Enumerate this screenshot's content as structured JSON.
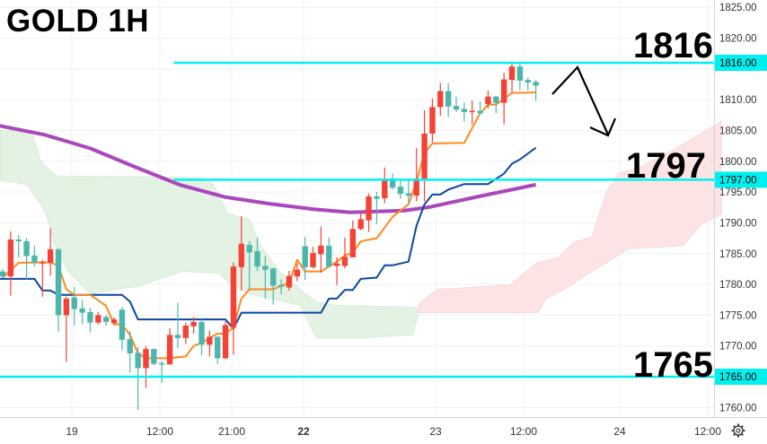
{
  "title": "GOLD 1H",
  "colors": {
    "up": "#f44336",
    "down": "#4db6ac",
    "tenkan": "#ff8a1f",
    "kijun": "#0d47a1",
    "moving_average": "#ab47bc",
    "level_line": "#00f0f0",
    "cloud_bull": "#e3f2e3",
    "cloud_bear": "#fde4e4",
    "annotation": "#000000"
  },
  "chart_data": {
    "type": "candlestick",
    "symbol_label": "GOLD 1H",
    "ylim": [
      1758,
      1826
    ],
    "yticks": [
      1760,
      1765,
      1770,
      1775,
      1780,
      1785,
      1790,
      1795,
      1800,
      1805,
      1810,
      1815,
      1820,
      1825
    ],
    "ytick_labels": [
      "1760.00",
      "1765.00",
      "1770.00",
      "1775.00",
      "1780.00",
      "1785.00",
      "1790.00",
      "1795.00",
      "1800.00",
      "1805.00",
      "1810.00",
      "1815.00",
      "1820.00",
      "1825.00"
    ],
    "xtick_labels": [
      {
        "label": "19",
        "bold": false
      },
      {
        "label": "12:00",
        "bold": false
      },
      {
        "label": "21:00",
        "bold": false
      },
      {
        "label": "22",
        "bold": true
      },
      {
        "label": "23",
        "bold": false
      },
      {
        "label": "12:00",
        "bold": false
      },
      {
        "label": "24",
        "bold": false
      },
      {
        "label": "12:00",
        "bold": false
      }
    ],
    "grid": true,
    "candles_ohlc": [
      [
        1782.1,
        1782.5,
        1781.0,
        1781.3
      ],
      [
        1781.3,
        1788.6,
        1778.2,
        1787.3
      ],
      [
        1787.3,
        1788.0,
        1784.4,
        1787.0
      ],
      [
        1787.0,
        1787.5,
        1780.8,
        1784.6
      ],
      [
        1784.7,
        1786.3,
        1782.9,
        1783.5
      ],
      [
        1783.4,
        1784.0,
        1778.0,
        1783.6
      ],
      [
        1783.5,
        1789.1,
        1781.4,
        1785.7
      ],
      [
        1785.7,
        1785.9,
        1772.3,
        1775.0
      ],
      [
        1775.0,
        1778.0,
        1767.4,
        1777.7
      ],
      [
        1777.9,
        1779.6,
        1773.4,
        1776.0
      ],
      [
        1776.1,
        1777.5,
        1773.5,
        1775.4
      ],
      [
        1775.5,
        1776.2,
        1772.2,
        1773.8
      ],
      [
        1773.8,
        1775.5,
        1773.5,
        1775.0
      ],
      [
        1774.7,
        1775.0,
        1773.3,
        1773.9
      ],
      [
        1773.7,
        1774.7,
        1773.4,
        1774.3
      ],
      [
        1775.9,
        1776.3,
        1769.3,
        1771.0
      ],
      [
        1771.1,
        1772.4,
        1765.7,
        1768.8
      ],
      [
        1768.9,
        1769.8,
        1759.6,
        1766.4
      ],
      [
        1766.4,
        1770.0,
        1763.2,
        1769.5
      ],
      [
        1769.5,
        1769.6,
        1766.9,
        1767.1
      ],
      [
        1767.2,
        1767.6,
        1764.0,
        1767.0
      ],
      [
        1767.0,
        1772.9,
        1767.0,
        1771.8
      ],
      [
        1771.8,
        1777.0,
        1769.6,
        1771.3
      ],
      [
        1771.3,
        1773.8,
        1770.3,
        1773.3
      ],
      [
        1773.2,
        1774.7,
        1772.0,
        1773.9
      ],
      [
        1773.9,
        1774.3,
        1768.5,
        1770.2
      ],
      [
        1770.2,
        1772.5,
        1768.3,
        1771.5
      ],
      [
        1771.5,
        1771.6,
        1767.1,
        1768.0
      ],
      [
        1768.0,
        1774.0,
        1767.9,
        1773.4
      ],
      [
        1773.0,
        1783.6,
        1768.6,
        1782.9
      ],
      [
        1782.8,
        1791.1,
        1779.0,
        1786.6
      ],
      [
        1786.4,
        1787.0,
        1779.0,
        1785.2
      ],
      [
        1785.4,
        1787.6,
        1782.2,
        1782.9
      ],
      [
        1783.0,
        1784.6,
        1777.7,
        1782.4
      ],
      [
        1782.6,
        1782.7,
        1776.7,
        1779.8
      ],
      [
        1779.9,
        1780.8,
        1778.4,
        1779.6
      ],
      [
        1779.5,
        1782.2,
        1779.0,
        1781.4
      ],
      [
        1781.3,
        1783.4,
        1780.5,
        1782.4
      ],
      [
        1786.2,
        1787.7,
        1780.7,
        1782.8
      ],
      [
        1782.8,
        1786.1,
        1782.6,
        1785.1
      ],
      [
        1784.9,
        1789.4,
        1781.9,
        1786.3
      ],
      [
        1786.3,
        1787.6,
        1782.7,
        1782.9
      ],
      [
        1783.0,
        1784.4,
        1779.9,
        1783.4
      ],
      [
        1783.0,
        1787.6,
        1782.6,
        1784.5
      ],
      [
        1784.4,
        1790.4,
        1784.4,
        1789.0
      ],
      [
        1789.0,
        1792.0,
        1788.8,
        1790.6
      ],
      [
        1790.4,
        1794.8,
        1788.5,
        1794.3
      ],
      [
        1794.3,
        1795.0,
        1789.8,
        1793.9
      ],
      [
        1794.0,
        1799.0,
        1793.2,
        1797.2
      ],
      [
        1797.2,
        1798.0,
        1795.4,
        1795.7
      ],
      [
        1795.9,
        1797.2,
        1793.9,
        1794.7
      ],
      [
        1794.8,
        1797.2,
        1793.0,
        1794.4
      ],
      [
        1794.4,
        1802.2,
        1793.5,
        1797.2
      ],
      [
        1797.2,
        1808.3,
        1793.5,
        1804.5
      ],
      [
        1804.5,
        1810.2,
        1803.1,
        1808.8
      ],
      [
        1808.8,
        1812.7,
        1807.4,
        1811.4
      ],
      [
        1811.4,
        1812.7,
        1807.2,
        1808.9
      ],
      [
        1809.0,
        1810.5,
        1808.0,
        1808.4
      ],
      [
        1808.5,
        1809.5,
        1806.4,
        1808.0
      ],
      [
        1808.0,
        1809.9,
        1806.0,
        1808.2
      ],
      [
        1808.2,
        1809.7,
        1807.6,
        1807.8
      ],
      [
        1809.3,
        1811.5,
        1808.6,
        1810.5
      ],
      [
        1810.5,
        1810.6,
        1807.8,
        1809.5
      ],
      [
        1809.5,
        1814.4,
        1806.0,
        1813.3
      ],
      [
        1813.2,
        1815.9,
        1811.2,
        1815.4
      ],
      [
        1815.4,
        1816.0,
        1811.6,
        1813.1
      ],
      [
        1813.2,
        1813.6,
        1811.5,
        1812.8
      ],
      [
        1812.9,
        1813.2,
        1809.8,
        1812.3
      ]
    ],
    "tenkan_line": [
      [
        0,
        1781.1
      ],
      [
        2,
        1783.5
      ],
      [
        6,
        1783.6
      ],
      [
        7,
        1783.0
      ],
      [
        8,
        1779.2
      ],
      [
        9,
        1778.3
      ],
      [
        11,
        1778.3
      ],
      [
        13,
        1776.5
      ],
      [
        14,
        1773.5
      ],
      [
        15,
        1773.5
      ],
      [
        16,
        1771.8
      ],
      [
        17,
        1768.8
      ],
      [
        18,
        1768.0
      ],
      [
        21,
        1768.0
      ],
      [
        23,
        1768.3
      ],
      [
        24,
        1770.0
      ],
      [
        25,
        1770.5
      ],
      [
        26,
        1771.3
      ],
      [
        27,
        1772.0
      ],
      [
        28,
        1772.0
      ],
      [
        29,
        1773.0
      ],
      [
        30,
        1777.7
      ],
      [
        31,
        1779.2
      ],
      [
        34,
        1779.2
      ],
      [
        35,
        1779.8
      ],
      [
        36,
        1780.2
      ],
      [
        37,
        1784.0
      ],
      [
        38,
        1782.1
      ],
      [
        40,
        1782.1
      ],
      [
        41,
        1782.9
      ],
      [
        42,
        1783.7
      ],
      [
        43,
        1784.7
      ],
      [
        44,
        1785.1
      ],
      [
        45,
        1787.0
      ],
      [
        47,
        1787.5
      ],
      [
        49,
        1791.0
      ],
      [
        51,
        1793.0
      ],
      [
        52,
        1796.7
      ],
      [
        53,
        1801.3
      ],
      [
        54,
        1802.9
      ],
      [
        58,
        1803.0
      ],
      [
        60,
        1807.8
      ],
      [
        61,
        1809.2
      ],
      [
        62,
        1809.2
      ],
      [
        64,
        1811.1
      ],
      [
        67,
        1811.2
      ]
    ],
    "kijun_line": [
      [
        -0.5,
        1780.9
      ],
      [
        4,
        1780.9
      ],
      [
        5,
        1779.0
      ],
      [
        6,
        1779.0
      ],
      [
        7,
        1778.3
      ],
      [
        15,
        1778.3
      ],
      [
        16,
        1777.2
      ],
      [
        17,
        1774.3
      ],
      [
        28,
        1774.3
      ],
      [
        29,
        1772.8
      ],
      [
        30,
        1775.4
      ],
      [
        40,
        1775.4
      ],
      [
        41,
        1777.7
      ],
      [
        42,
        1777.7
      ],
      [
        43,
        1779.1
      ],
      [
        44,
        1779.1
      ],
      [
        45,
        1780.9
      ],
      [
        47,
        1781.1
      ],
      [
        48,
        1783.1
      ],
      [
        49,
        1783.1
      ],
      [
        51,
        1783.7
      ],
      [
        52,
        1789.5
      ],
      [
        53,
        1793.0
      ],
      [
        54,
        1794.6
      ],
      [
        55,
        1794.6
      ],
      [
        56,
        1795.4
      ],
      [
        58,
        1796.3
      ],
      [
        61,
        1796.3
      ],
      [
        63,
        1798.0
      ],
      [
        64,
        1799.6
      ],
      [
        65,
        1800.3
      ],
      [
        67,
        1802.2
      ]
    ],
    "moving_average": [
      [
        -0.5,
        1805.8
      ],
      [
        5.3,
        1804.3
      ],
      [
        11,
        1802.1
      ],
      [
        16.6,
        1799.1
      ],
      [
        22.2,
        1796.2
      ],
      [
        27.9,
        1794.2
      ],
      [
        33.5,
        1793.1
      ],
      [
        39.2,
        1792.2
      ],
      [
        43.7,
        1791.7
      ],
      [
        50.5,
        1792.0
      ],
      [
        53.8,
        1792.6
      ],
      [
        59.5,
        1794.2
      ],
      [
        67,
        1796.2
      ]
    ],
    "cloud_bull": {
      "upper": [
        [
          -0.3,
          1805.0
        ],
        [
          3.7,
          1804.7
        ],
        [
          4.8,
          1799.9
        ],
        [
          6.8,
          1797.6
        ],
        [
          8.8,
          1797.6
        ],
        [
          24.8,
          1797.4
        ],
        [
          26.5,
          1796.2
        ],
        [
          28.3,
          1791.5
        ],
        [
          31.1,
          1790.5
        ],
        [
          32.3,
          1786.5
        ],
        [
          34.8,
          1782.1
        ],
        [
          37.8,
          1778.7
        ],
        [
          39.4,
          1777.2
        ],
        [
          41.6,
          1776.6
        ],
        [
          51.5,
          1776.3
        ],
        [
          52.3,
          1776.2
        ]
      ],
      "lower": [
        [
          -0.3,
          1796.9
        ],
        [
          3.1,
          1796.2
        ],
        [
          5.4,
          1791.7
        ],
        [
          6.5,
          1786.5
        ],
        [
          8.2,
          1782.1
        ],
        [
          11.1,
          1778.4
        ],
        [
          14,
          1779.2
        ],
        [
          16.8,
          1779.6
        ],
        [
          22.5,
          1782.1
        ],
        [
          27.1,
          1781.8
        ],
        [
          28.8,
          1779.9
        ],
        [
          31.1,
          1778.4
        ],
        [
          37.4,
          1776.6
        ],
        [
          39.4,
          1771.3
        ],
        [
          45.4,
          1771.3
        ],
        [
          51.5,
          1771.8
        ],
        [
          52.3,
          1775.4
        ]
      ]
    },
    "cloud_bear": {
      "upper": [
        [
          52.3,
          1776.9
        ],
        [
          54.6,
          1779.2
        ],
        [
          63.7,
          1779.9
        ],
        [
          67.2,
          1783.6
        ],
        [
          69.8,
          1784.3
        ],
        [
          71.7,
          1786.8
        ],
        [
          74,
          1787.7
        ],
        [
          76,
          1795.4
        ],
        [
          77.5,
          1798.1
        ],
        [
          79.7,
          1798.8
        ],
        [
          83.5,
          1801.3
        ],
        [
          86.6,
          1803.6
        ],
        [
          90.3,
          1806.5
        ]
      ],
      "lower": [
        [
          52.3,
          1775.4
        ],
        [
          67.2,
          1775.4
        ],
        [
          68.3,
          1777.7
        ],
        [
          70.6,
          1779.2
        ],
        [
          74,
          1782.1
        ],
        [
          76,
          1783.6
        ],
        [
          78.6,
          1785.8
        ],
        [
          85.5,
          1786.3
        ],
        [
          87.8,
          1789.8
        ],
        [
          90.3,
          1791.4
        ]
      ]
    },
    "levels": [
      {
        "price": 1816,
        "label": "1816",
        "badge": "1816.00",
        "from_candle": 21.5
      },
      {
        "price": 1797,
        "label": "1797",
        "badge": "1797.00",
        "from_candle": 21.5
      },
      {
        "price": 1765,
        "label": "1765",
        "badge": "1765.00",
        "from_candle": -1
      }
    ],
    "annotation": "hand-drawn arrow: up then down toward 1797"
  },
  "settings_icon": "gear-icon"
}
